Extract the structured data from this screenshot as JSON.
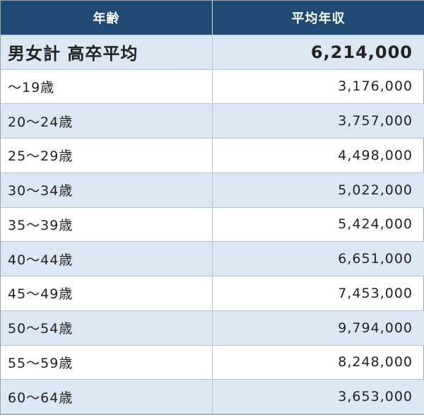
{
  "table": {
    "header": [
      "年齢",
      "平均年収"
    ],
    "rows": [
      [
        "男女計 高卒平均",
        "6,214,000"
      ],
      [
        "～19歳",
        "3,176,000"
      ],
      [
        "20～24歳",
        "3,757,000"
      ],
      [
        "25～29歳",
        "4,498,000"
      ],
      [
        "30～34歳",
        "5,022,000"
      ],
      [
        "35～39歳",
        "5,424,000"
      ],
      [
        "40～44歳",
        "6,651,000"
      ],
      [
        "45～49歳",
        "7,453,000"
      ],
      [
        "50～54歳",
        "9,794,000"
      ],
      [
        "55～59歳",
        "8,248,000"
      ],
      [
        "60～64歳",
        "3,653,000"
      ]
    ]
  }
}
